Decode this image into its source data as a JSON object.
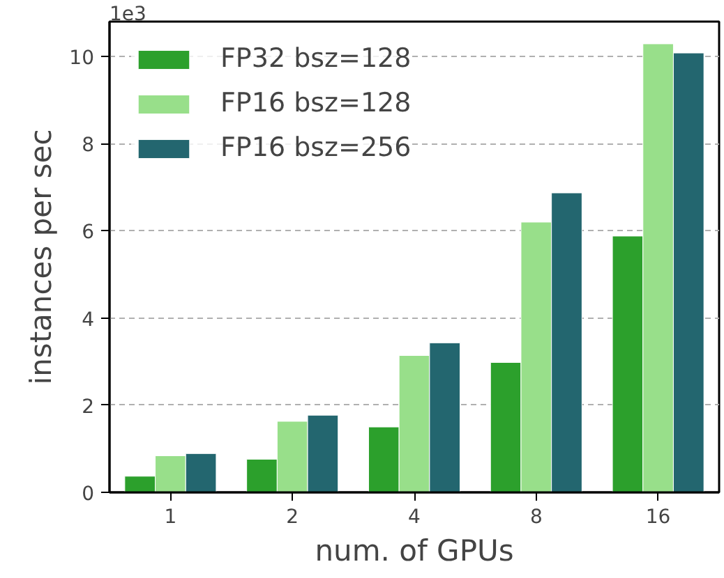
{
  "chart_data": {
    "type": "bar",
    "xlabel": "num. of GPUs",
    "ylabel": "instances per sec",
    "categories": [
      "1",
      "2",
      "4",
      "8",
      "16"
    ],
    "series": [
      {
        "name": "FP32 bsz=128",
        "color": "#2ca02c",
        "values": [
          0.37,
          0.76,
          1.5,
          2.98,
          5.88
        ]
      },
      {
        "name": "FP16 bsz=128",
        "color": "#98df8a",
        "values": [
          0.84,
          1.63,
          3.14,
          6.2,
          10.29
        ]
      },
      {
        "name": "FP16 bsz=256",
        "color": "#23666f",
        "values": [
          0.89,
          1.77,
          3.43,
          6.87,
          10.08
        ]
      }
    ],
    "ylim": [
      0,
      10.8
    ],
    "yticks": [
      0,
      2,
      4,
      6,
      8,
      10
    ],
    "grid": "y",
    "legend": "top left",
    "annotations": [
      "1e3"
    ]
  }
}
